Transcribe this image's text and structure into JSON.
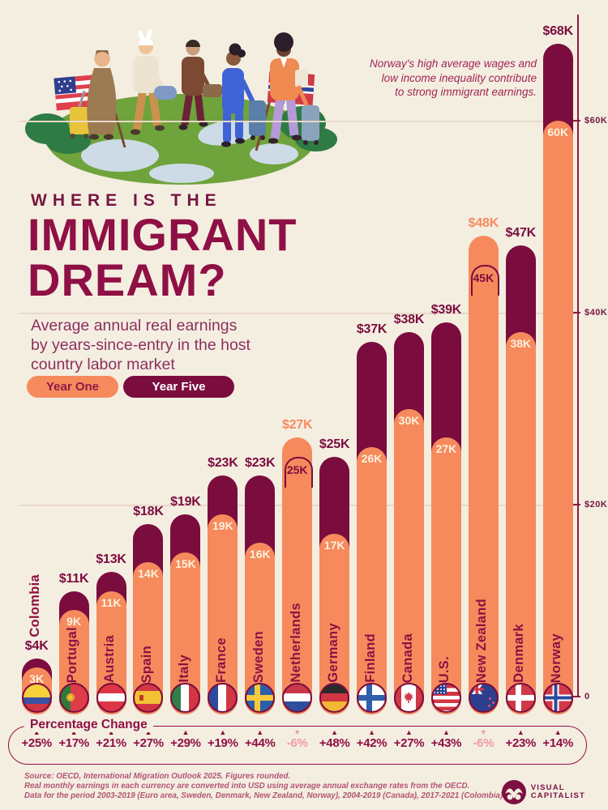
{
  "colors": {
    "background": "#f4eee1",
    "year_one_orange": "#f68a5c",
    "year_five_maroon": "#7b0c3e",
    "title": "#8e1044",
    "negative_pink": "#f09aa5",
    "source_text": "#b25573",
    "gridline": "#e7d8ca"
  },
  "header": {
    "kicker": "WHERE IS THE",
    "title_line1": "IMMIGRANT",
    "title_line2": "DREAM?",
    "subtitle": [
      "Average annual real earnings",
      "by years-since-entry in the host",
      "country labor market"
    ],
    "legend": [
      {
        "label": "Year One",
        "color": "#f68a5c"
      },
      {
        "label": "Year Five",
        "color": "#7b0c3e"
      }
    ]
  },
  "annotation": {
    "lines": [
      "Norway's high average wages and",
      "low income inequality contribute",
      "to strong immigrant earnings."
    ]
  },
  "chart_data": {
    "type": "bar",
    "title": "Where is the Immigrant Dream?",
    "subtitle": "Average annual real earnings by years-since-entry in the host country labor market",
    "unit": "USD thousands per year",
    "categories": [
      "Colombia",
      "Portugal",
      "Austria",
      "Spain",
      "Italy",
      "France",
      "Sweden",
      "Netherlands",
      "Germany",
      "Finland",
      "Canada",
      "U.S.",
      "New Zealand",
      "Denmark",
      "Norway"
    ],
    "series": [
      {
        "name": "Year One",
        "values": [
          3,
          9,
          11,
          14,
          15,
          19,
          16,
          27,
          17,
          26,
          30,
          27,
          48,
          38,
          60
        ]
      },
      {
        "name": "Year Five",
        "values": [
          4,
          11,
          13,
          18,
          19,
          23,
          23,
          25,
          25,
          37,
          38,
          39,
          45,
          47,
          68
        ]
      }
    ],
    "top_labels": [
      "$4K",
      "$11K",
      "$13K",
      "$18K",
      "$19K",
      "$23K",
      "$23K",
      "$27K",
      "$25K",
      "$37K",
      "$38K",
      "$39K",
      "$48K",
      "$47K",
      "$68K"
    ],
    "inner_labels": [
      "3K",
      "9K",
      "11K",
      "14K",
      "15K",
      "19K",
      "16K",
      "25K",
      "17K",
      "26K",
      "30K",
      "27K",
      "45K",
      "38K",
      "60K"
    ],
    "pct_change": [
      "+25%",
      "+17%",
      "+21%",
      "+27%",
      "+29%",
      "+19%",
      "+44%",
      "-6%",
      "+48%",
      "+42%",
      "+27%",
      "+43%",
      "-6%",
      "+23%",
      "+14%"
    ],
    "negative_indices": [
      7,
      12
    ],
    "flags": [
      "colombia",
      "portugal",
      "austria",
      "spain",
      "italy",
      "france",
      "sweden",
      "netherlands",
      "germany",
      "finland",
      "canada",
      "us",
      "nz",
      "denmark",
      "norway"
    ],
    "axis_ticks": [
      {
        "label": "$60K",
        "value": 60
      },
      {
        "label": "$40K",
        "value": 40
      },
      {
        "label": "$20K",
        "value": 20
      },
      {
        "label": "0",
        "value": 0
      }
    ],
    "ylim": [
      0,
      71
    ],
    "legend_position": "top-left",
    "grid": "horizontal-faint"
  },
  "pct_box": {
    "label": "Percentage Change"
  },
  "footer": {
    "source_lines": [
      "Source: OECD, International Migration Outlook 2025. Figures rounded.",
      "Real monthly earnings in each currency are converted into USD using average annual exchange rates from the OECD.",
      "Data for the period 2003-2019 (Euro area, Sweden, Denmark, New Zealand, Norway), 2004-2019 (Canada), 2017-2021 (Colombia)."
    ],
    "logo": {
      "line1": "VISUAL",
      "line2": "CAPITALIST"
    }
  }
}
